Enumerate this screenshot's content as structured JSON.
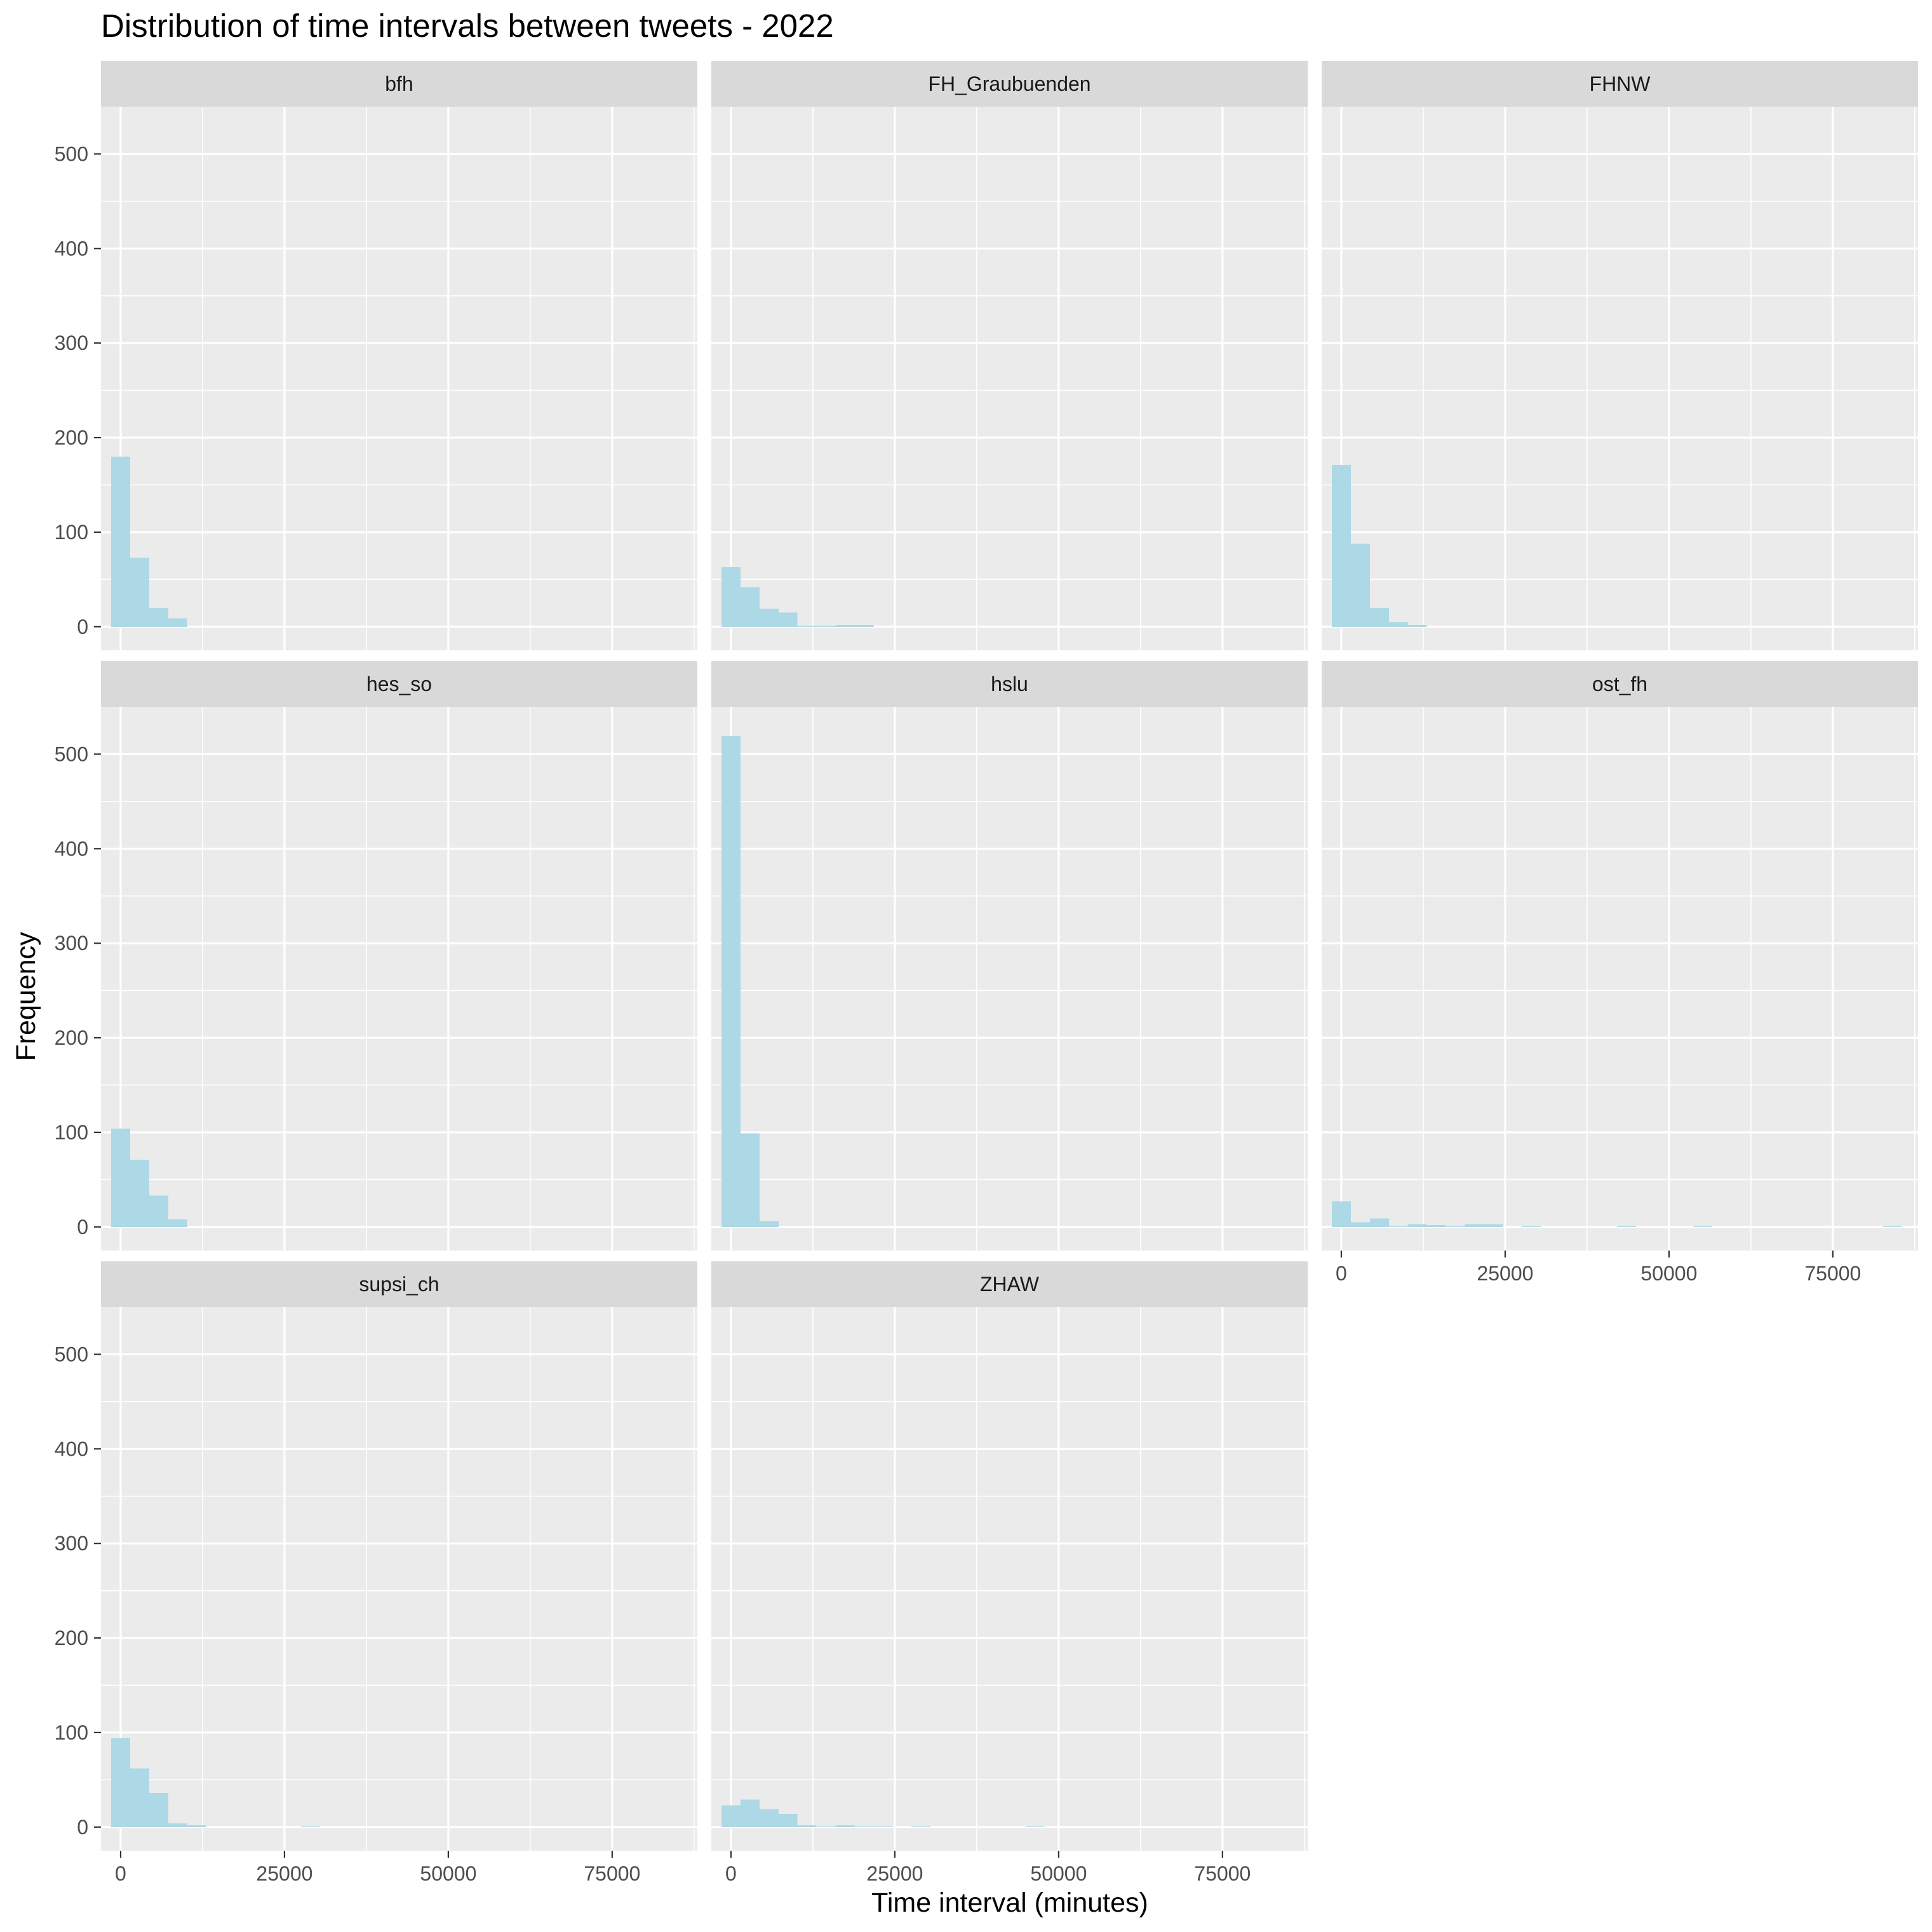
{
  "chart_data": {
    "type": "bar",
    "subtype": "faceted-histogram",
    "title": "Distribution of time intervals between tweets - 2022",
    "xlabel": "Time interval (minutes)",
    "ylabel": "Frequency",
    "xlim": [
      -3000,
      88000
    ],
    "ylim": [
      -25,
      550
    ],
    "x_ticks": [
      0,
      25000,
      50000,
      75000
    ],
    "x_tick_labels": [
      "0",
      "25000",
      "50000",
      "75000"
    ],
    "y_ticks": [
      0,
      100,
      200,
      300,
      400,
      500
    ],
    "y_tick_labels": [
      "0",
      "100",
      "200",
      "300",
      "400",
      "500"
    ],
    "bin_width": 2900,
    "bin_start": -1450,
    "bar_color": "#add8e6",
    "panel_background": "#ebebeb",
    "strip_background": "#d9d9d9",
    "grid": true,
    "facets": [
      {
        "name": "bfh",
        "values": [
          180,
          73,
          20,
          9,
          0,
          0,
          0,
          0,
          0,
          0,
          0,
          0,
          0,
          0,
          0,
          0,
          0,
          0,
          0,
          0,
          0,
          0,
          0,
          0,
          0,
          0,
          0,
          0,
          0,
          0
        ]
      },
      {
        "name": "FH_Graubuenden",
        "values": [
          63,
          42,
          19,
          15,
          1,
          1,
          2,
          2,
          0,
          0,
          0,
          0,
          0,
          0,
          0,
          0,
          0,
          0,
          0,
          0,
          0,
          0,
          0,
          0,
          0,
          0,
          0,
          0,
          0,
          0
        ]
      },
      {
        "name": "FHNW",
        "values": [
          171,
          88,
          20,
          5,
          2,
          0,
          0,
          0,
          0,
          0,
          0,
          0,
          0,
          0,
          0,
          0,
          0,
          0,
          0,
          0,
          0,
          0,
          0,
          0,
          0,
          0,
          0,
          0,
          0,
          0
        ]
      },
      {
        "name": "hes_so",
        "values": [
          104,
          71,
          33,
          8,
          0,
          0,
          0,
          0,
          0,
          0,
          0,
          0,
          0,
          0,
          0,
          0,
          0,
          0,
          0,
          0,
          0,
          0,
          0,
          0,
          0,
          0,
          0,
          0,
          0,
          0
        ]
      },
      {
        "name": "hslu",
        "values": [
          519,
          99,
          6,
          0,
          0,
          0,
          0,
          0,
          0,
          0,
          0,
          0,
          0,
          0,
          0,
          0,
          0,
          0,
          0,
          0,
          0,
          0,
          0,
          0,
          0,
          0,
          0,
          0,
          0,
          0
        ]
      },
      {
        "name": "ost_fh",
        "values": [
          27,
          5,
          9,
          1,
          3,
          2,
          1,
          3,
          3,
          0,
          1,
          0,
          0,
          0,
          0,
          1,
          0,
          0,
          0,
          1,
          0,
          0,
          0,
          0,
          0,
          0,
          0,
          0,
          0,
          1
        ]
      },
      {
        "name": "supsi_ch",
        "values": [
          94,
          62,
          36,
          4,
          2,
          0,
          0,
          0,
          0,
          0,
          1,
          0,
          0,
          0,
          0,
          0,
          0,
          0,
          0,
          0,
          0,
          0,
          0,
          0,
          0,
          0,
          0,
          0,
          0,
          0
        ]
      },
      {
        "name": "ZHAW",
        "values": [
          23,
          29,
          19,
          14,
          2,
          1,
          2,
          1,
          1,
          0,
          1,
          0,
          0,
          0,
          0,
          0,
          1,
          0,
          0,
          0,
          0,
          0,
          0,
          0,
          0,
          0,
          0,
          0,
          0,
          0
        ]
      }
    ]
  }
}
